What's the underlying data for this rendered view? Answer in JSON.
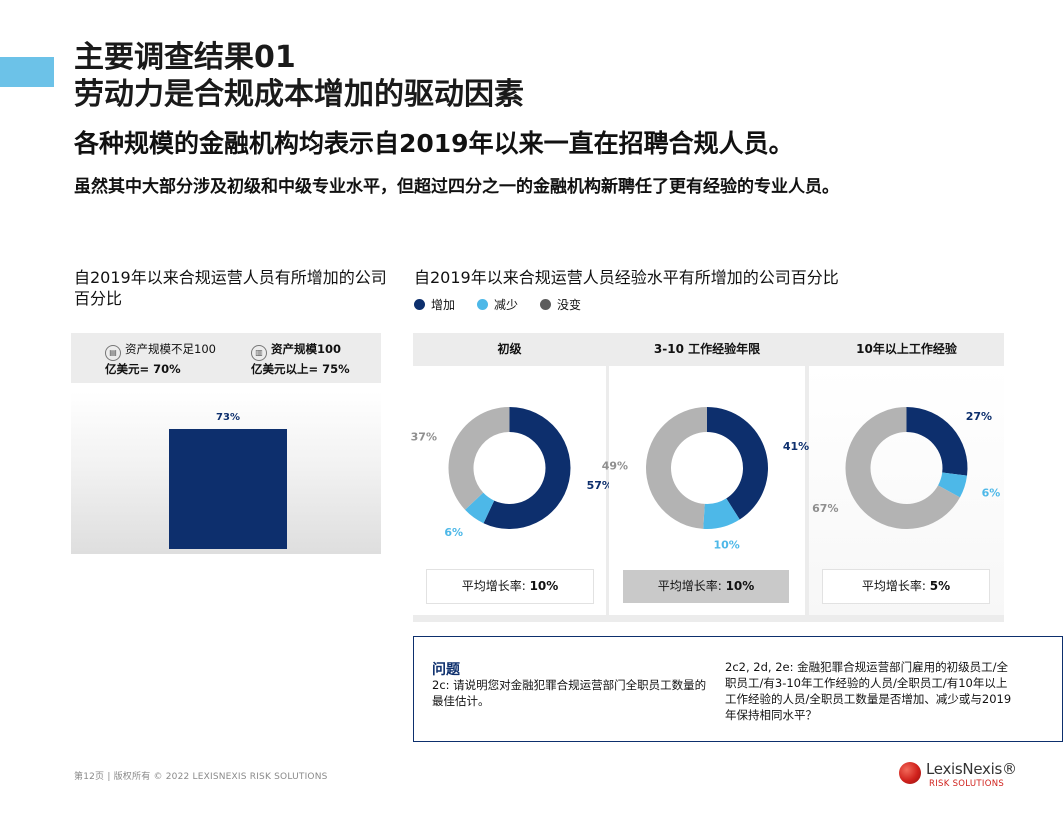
{
  "page": {
    "title_line1": "主要调查结果01",
    "title_line2": "劳动力是合规成本增加的驱动因素",
    "subtitle": "各种规模的金融机构均表示自2019年以来一直在招聘合规人员。",
    "intro": "虽然其中大部分涉及初级和中级专业水平，但超过四分之一的金融机构新聘任了更有经验的专业人员。",
    "colors": {
      "navy": "#0d2f6d",
      "light_blue": "#4db8e8",
      "grey": "#b3b3b3",
      "accent": "#6cc2e8"
    }
  },
  "left_chart": {
    "heading": "自2019年以来合规运营人员有所增加的公司百分比",
    "size_small_icon": "building-small-icon",
    "size_small_line1": "资产规模不足100",
    "size_small_line2": "亿美元= 70%",
    "size_large_icon": "building-large-icon",
    "size_large_line1": "资产规模100",
    "size_large_line2": "亿美元以上= 75%"
  },
  "right_chart": {
    "heading": "自2019年以来合规运营人员经验水平有所增加的公司百分比",
    "legend": [
      {
        "label": "增加",
        "color": "#0d2f6d"
      },
      {
        "label": "减少",
        "color": "#4db8e8"
      },
      {
        "label": "没变",
        "color": "#5c5c5c"
      }
    ]
  },
  "chart_data": [
    {
      "type": "bar",
      "title": "自2019年以来合规运营人员有所增加的公司百分比",
      "categories": [
        ""
      ],
      "values": [
        73
      ],
      "value_labels": [
        "73%"
      ],
      "ylim": [
        0,
        100
      ],
      "color": "#0d2f6d"
    },
    {
      "type": "pie",
      "title": "初级",
      "slices": [
        {
          "name": "增加",
          "value": 57,
          "label": "57%",
          "color": "#0d2f6d"
        },
        {
          "name": "减少",
          "value": 6,
          "label": "6%",
          "color": "#4db8e8"
        },
        {
          "name": "没变",
          "value": 37,
          "label": "37%",
          "color": "#b3b3b3"
        }
      ],
      "avg_label": "平均增长率:",
      "avg_value": "10%"
    },
    {
      "type": "pie",
      "title": "3-10 工作经验年限",
      "slices": [
        {
          "name": "增加",
          "value": 41,
          "label": "41%",
          "color": "#0d2f6d"
        },
        {
          "name": "减少",
          "value": 10,
          "label": "10%",
          "color": "#4db8e8"
        },
        {
          "name": "没变",
          "value": 49,
          "label": "49%",
          "color": "#b3b3b3"
        }
      ],
      "avg_label": "平均增长率:",
      "avg_value": "10%"
    },
    {
      "type": "pie",
      "title": "10年以上工作经验",
      "slices": [
        {
          "name": "增加",
          "value": 27,
          "label": "27%",
          "color": "#0d2f6d"
        },
        {
          "name": "减少",
          "value": 6,
          "label": "6%",
          "color": "#4db8e8"
        },
        {
          "name": "没变",
          "value": 67,
          "label": "67%",
          "color": "#b3b3b3"
        }
      ],
      "avg_label": "平均增长率:",
      "avg_value": "5%"
    }
  ],
  "question": {
    "title": "问题",
    "left_text": "2c: 请说明您对金融犯罪合规运营部门全职员工数量的最佳估计。",
    "right_text": "2c2, 2d, 2e: 金融犯罪合规运营部门雇用的初级员工/全职员工/有3-10年工作经验的人员/全职员工/有10年以上工作经验的人员/全职员工数量是否增加、减少或与2019年保持相同水平？"
  },
  "footer": {
    "page_text": "第12页 |  版权所有 © 2022 LEXISNEXIS RISK SOLUTIONS",
    "logo_name": "LexisNexis®",
    "logo_sub": "RISK SOLUTIONS"
  }
}
